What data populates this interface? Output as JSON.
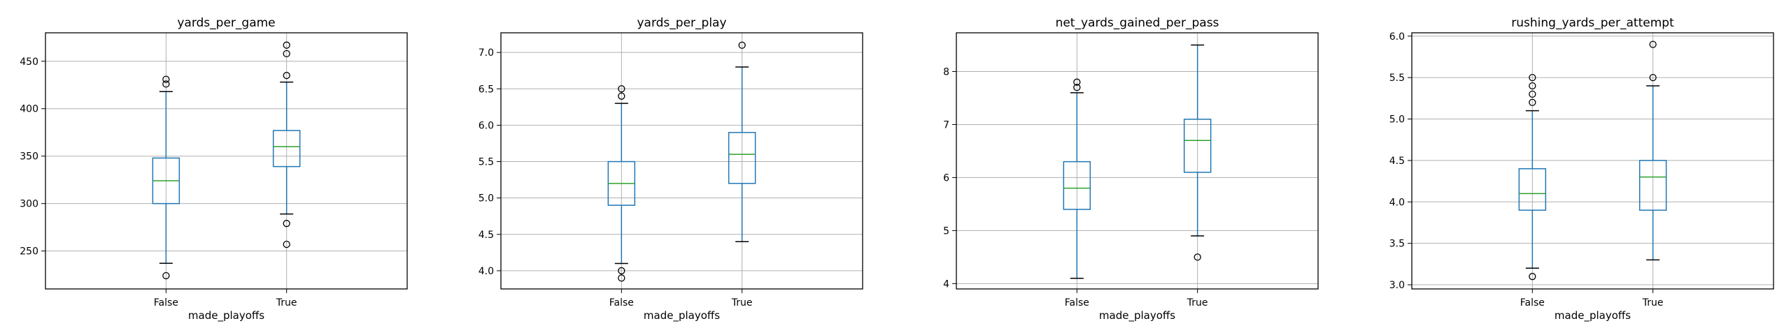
{
  "colors": {
    "box": "#1f77b4",
    "median": "#2ca02c",
    "grid": "#b0b0b0",
    "frame": "#000000"
  },
  "chart_data": [
    {
      "type": "box",
      "title": "yards_per_game",
      "xlabel": "made_playoffs",
      "categories": [
        "False",
        "True"
      ],
      "ylim": [
        210,
        480
      ],
      "yticks": [
        250,
        300,
        350,
        400,
        450
      ],
      "grid": true,
      "boxes": [
        {
          "category": "False",
          "whislo": 237,
          "q1": 300,
          "med": 324,
          "q3": 348,
          "whishi": 418,
          "fliers": [
            224,
            426,
            431
          ]
        },
        {
          "category": "True",
          "whislo": 289,
          "q1": 339,
          "med": 360,
          "q3": 377,
          "whishi": 428,
          "fliers": [
            257,
            279,
            435,
            458,
            467
          ]
        }
      ]
    },
    {
      "type": "box",
      "title": "yards_per_play",
      "xlabel": "made_playoffs",
      "categories": [
        "False",
        "True"
      ],
      "ylim": [
        3.75,
        7.27
      ],
      "yticks": [
        4.0,
        4.5,
        5.0,
        5.5,
        6.0,
        6.5,
        7.0
      ],
      "grid": true,
      "boxes": [
        {
          "category": "False",
          "whislo": 4.1,
          "q1": 4.9,
          "med": 5.2,
          "q3": 5.5,
          "whishi": 6.3,
          "fliers": [
            3.9,
            4.0,
            6.4,
            6.5
          ]
        },
        {
          "category": "True",
          "whislo": 4.4,
          "q1": 5.2,
          "med": 5.6,
          "q3": 5.9,
          "whishi": 6.8,
          "fliers": [
            7.1
          ]
        }
      ]
    },
    {
      "type": "box",
      "title": "net_yards_gained_per_pass",
      "xlabel": "made_playoffs",
      "categories": [
        "False",
        "True"
      ],
      "ylim": [
        3.9,
        8.73
      ],
      "yticks": [
        4,
        5,
        6,
        7,
        8
      ],
      "grid": true,
      "boxes": [
        {
          "category": "False",
          "whislo": 4.1,
          "q1": 5.4,
          "med": 5.8,
          "q3": 6.3,
          "whishi": 7.6,
          "fliers": [
            7.7,
            7.8
          ]
        },
        {
          "category": "True",
          "whislo": 4.9,
          "q1": 6.1,
          "med": 6.7,
          "q3": 7.1,
          "whishi": 8.5,
          "fliers": [
            4.5
          ]
        }
      ]
    },
    {
      "type": "box",
      "title": "rushing_yards_per_attempt",
      "xlabel": "made_playoffs",
      "categories": [
        "False",
        "True"
      ],
      "ylim": [
        2.95,
        6.04
      ],
      "yticks": [
        3.0,
        3.5,
        4.0,
        4.5,
        5.0,
        5.5,
        6.0
      ],
      "grid": true,
      "boxes": [
        {
          "category": "False",
          "whislo": 3.2,
          "q1": 3.9,
          "med": 4.1,
          "q3": 4.4,
          "whishi": 5.1,
          "fliers": [
            3.1,
            5.2,
            5.3,
            5.4,
            5.5
          ]
        },
        {
          "category": "True",
          "whislo": 3.3,
          "q1": 3.9,
          "med": 4.3,
          "q3": 4.5,
          "whishi": 5.4,
          "fliers": [
            5.5,
            5.9
          ]
        }
      ]
    }
  ]
}
